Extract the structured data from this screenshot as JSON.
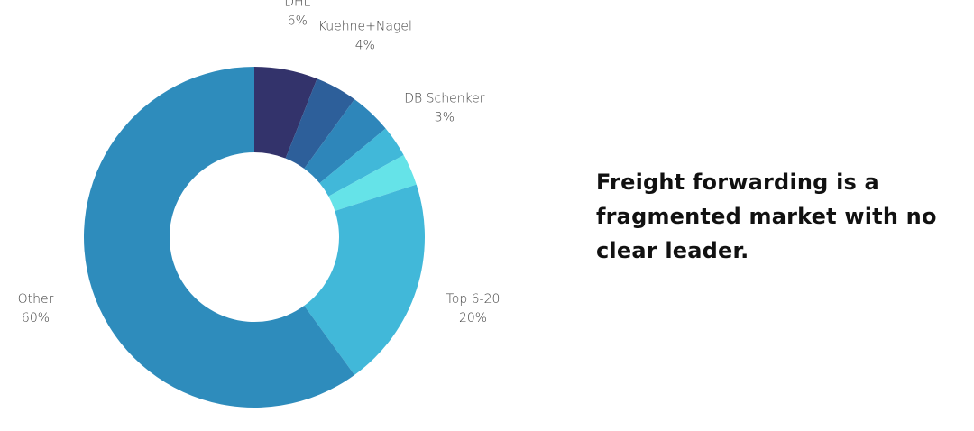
{
  "headline": {
    "lines": [
      "Freight forwarding is a",
      "fragmented market with no",
      "clear leader."
    ]
  },
  "chart_data": {
    "type": "pie",
    "variant": "donut",
    "slices": [
      {
        "label": "DHL",
        "value": 6,
        "value_label": "6%",
        "color": "#33336b",
        "show_label": true
      },
      {
        "label": "Kuehne+Nagel",
        "value": 4,
        "value_label": "4%",
        "color": "#2d5f9a",
        "show_label": true
      },
      {
        "label": "",
        "value": 4,
        "value_label": "",
        "color": "#2e86ba",
        "show_label": false
      },
      {
        "label": "DB Schenker",
        "value": 3,
        "value_label": "3%",
        "color": "#41b8d9",
        "show_label": true
      },
      {
        "label": "",
        "value": 3,
        "value_label": "",
        "color": "#65e3e8",
        "show_label": false
      },
      {
        "label": "Top 6-20",
        "value": 20,
        "value_label": "20%",
        "color": "#41b8d9",
        "show_label": true
      },
      {
        "label": "Other",
        "value": 60,
        "value_label": "60%",
        "color": "#2e8cbc",
        "show_label": true
      }
    ]
  }
}
